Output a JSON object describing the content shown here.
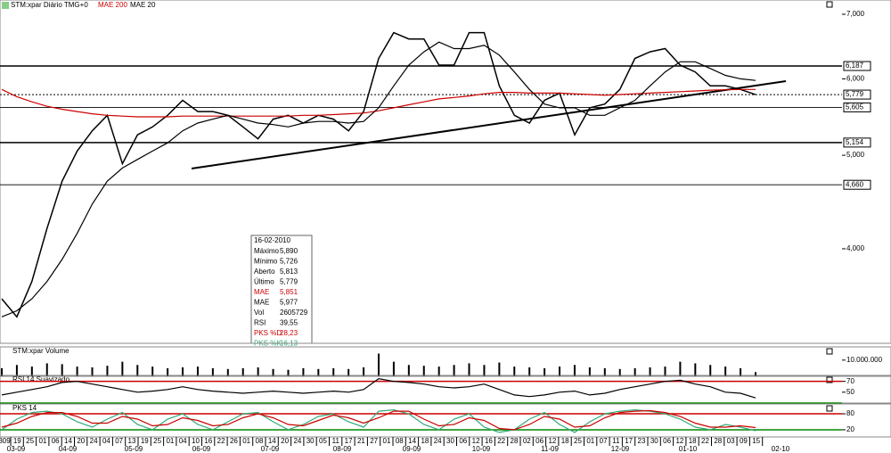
{
  "header": {
    "symbol": "STM:xpar Diário TMG+0",
    "ma1": "MAE 200",
    "ma2": "MAE 20"
  },
  "info_box": {
    "date": "16-02-2010",
    "rows": [
      [
        "Máximo",
        "5,890"
      ],
      [
        "Mínimo",
        "5,726"
      ],
      [
        "Aberto",
        "5,813"
      ],
      [
        "Último",
        "5,779"
      ],
      [
        "MAE",
        "5,851"
      ],
      [
        "MAE",
        "5,977"
      ],
      [
        "Vol",
        "2605729"
      ],
      [
        "RSI",
        "39,55"
      ],
      [
        "PKS %D",
        "28,23"
      ],
      [
        "PKS %K",
        "16,13"
      ]
    ]
  },
  "time_axis": {
    "days": [
      "309",
      "19",
      "25",
      "01",
      "06",
      "14",
      "20",
      "24",
      "04",
      "07",
      "13",
      "19",
      "25",
      "01",
      "04",
      "10",
      "16",
      "22",
      "26",
      "01",
      "08",
      "14",
      "20",
      "24",
      "30",
      "05",
      "11",
      "17",
      "21",
      "27",
      "01",
      "08",
      "14",
      "18",
      "24",
      "30",
      "06",
      "12",
      "16",
      "22",
      "28",
      "02",
      "06",
      "12",
      "18",
      "25",
      "01",
      "07",
      "11",
      "17",
      "23",
      "30",
      "06",
      "12",
      "18",
      "22",
      "28",
      "03",
      "09",
      "15"
    ],
    "months": [
      "03-09",
      "04-09",
      "05-09",
      "06-09",
      "07-09",
      "08-09",
      "09-09",
      "10-09",
      "11-09",
      "12-09",
      "01-10",
      "02-10"
    ]
  },
  "chart_data": [
    {
      "type": "line",
      "log_scale": true,
      "ylim": [
        3192,
        7060
      ],
      "yticks": [
        {
          "value": 7000,
          "label": "7,000"
        },
        {
          "value": 6000,
          "label": "6,000"
        },
        {
          "value": 5000,
          "label": "5,000"
        },
        {
          "value": 4000,
          "label": "4,000"
        }
      ],
      "levels": [
        {
          "value": 6187,
          "label": "6,187"
        },
        {
          "value": 5779,
          "label": "5,779"
        },
        {
          "value": 5605,
          "label": "5,605"
        },
        {
          "value": 5154,
          "label": "5,154"
        },
        {
          "value": 4660,
          "label": "4,660"
        }
      ],
      "series": [
        {
          "name": "STM:xpar",
          "color": "#000000",
          "values": [
            3550,
            3400,
            3700,
            4200,
            4700,
            5050,
            5300,
            5500,
            4900,
            5250,
            5350,
            5500,
            5700,
            5550,
            5550,
            5500,
            5350,
            5200,
            5450,
            5500,
            5400,
            5500,
            5450,
            5300,
            5550,
            6300,
            6700,
            6600,
            6600,
            6200,
            6200,
            6700,
            6700,
            5900,
            5500,
            5400,
            5700,
            5800,
            5250,
            5600,
            5650,
            5850,
            6300,
            6400,
            6450,
            6200,
            6100,
            5900,
            5900,
            5850,
            5779
          ]
        },
        {
          "name": "MAE 200",
          "color": "#cc0000",
          "values": [
            5850,
            5750,
            5680,
            5620,
            5580,
            5550,
            5520,
            5500,
            5490,
            5480,
            5480,
            5480,
            5490,
            5490,
            5490,
            5490,
            5490,
            5490,
            5490,
            5490,
            5500,
            5500,
            5510,
            5520,
            5530,
            5560,
            5600,
            5640,
            5680,
            5720,
            5740,
            5760,
            5790,
            5810,
            5810,
            5800,
            5800,
            5800,
            5790,
            5780,
            5770,
            5780,
            5790,
            5800,
            5810,
            5820,
            5830,
            5840,
            5845,
            5850,
            5851
          ]
        },
        {
          "name": "MAE 20",
          "color": "#000000",
          "values": [
            3400,
            3450,
            3550,
            3700,
            3900,
            4150,
            4450,
            4700,
            4850,
            4950,
            5050,
            5150,
            5300,
            5400,
            5450,
            5500,
            5450,
            5400,
            5380,
            5350,
            5400,
            5420,
            5420,
            5400,
            5420,
            5600,
            5900,
            6200,
            6400,
            6550,
            6450,
            6450,
            6500,
            6350,
            6100,
            5850,
            5650,
            5600,
            5600,
            5500,
            5500,
            5600,
            5700,
            5900,
            6100,
            6250,
            6250,
            6150,
            6050,
            6000,
            5977
          ]
        }
      ]
    },
    {
      "type": "bar",
      "title": "STM:xpar Volume",
      "ylim": [
        0,
        16500000
      ],
      "yticks": [
        {
          "value": 10000000,
          "label": "10.000.000"
        }
      ],
      "series": [
        {
          "name": "Volume",
          "color": "#000000",
          "values": [
            5000000,
            7000000,
            6000000,
            8000000,
            7500000,
            6000000,
            5500000,
            6500000,
            9000000,
            7000000,
            6000000,
            5000000,
            5500000,
            6000000,
            5000000,
            4500000,
            5000000,
            5500000,
            4500000,
            4000000,
            5000000,
            4500000,
            5000000,
            4500000,
            5500000,
            14000000,
            9000000,
            7000000,
            6500000,
            6000000,
            7000000,
            8000000,
            7000000,
            8500000,
            6000000,
            5500000,
            5000000,
            6000000,
            7000000,
            5500000,
            5000000,
            4500000,
            5000000,
            5500000,
            6000000,
            9000000,
            8000000,
            7000000,
            6000000,
            5000000,
            2605729
          ]
        }
      ]
    },
    {
      "type": "line",
      "title": "RSI 14 Suavizado",
      "ylim": [
        30,
        76
      ],
      "yticks": [
        70,
        50
      ],
      "bands": [
        {
          "value": 70,
          "color": "#cc0000"
        },
        {
          "value": 30,
          "color": "#008800"
        }
      ],
      "series": [
        {
          "name": "RSI",
          "color": "#000000",
          "values": [
            45,
            50,
            55,
            60,
            68,
            70,
            65,
            60,
            55,
            50,
            52,
            55,
            60,
            55,
            52,
            50,
            48,
            50,
            52,
            50,
            48,
            50,
            52,
            50,
            55,
            75,
            70,
            68,
            65,
            60,
            58,
            60,
            65,
            55,
            45,
            42,
            45,
            50,
            52,
            45,
            48,
            55,
            60,
            65,
            70,
            72,
            65,
            60,
            50,
            48,
            39.55
          ]
        }
      ]
    },
    {
      "type": "line",
      "title": "PKS 14",
      "ylim": [
        -7,
        107
      ],
      "yticks": [
        80,
        20
      ],
      "bands": [
        {
          "value": 80,
          "color": "#cc0000"
        },
        {
          "value": 20,
          "color": "#008800"
        }
      ],
      "series": [
        {
          "name": "PKS %K",
          "color": "#33aa77",
          "values": [
            20,
            60,
            85,
            90,
            80,
            50,
            30,
            60,
            85,
            40,
            20,
            60,
            80,
            40,
            20,
            50,
            80,
            85,
            50,
            20,
            40,
            70,
            80,
            50,
            30,
            90,
            95,
            80,
            40,
            20,
            60,
            80,
            30,
            10,
            20,
            60,
            85,
            40,
            10,
            50,
            80,
            90,
            95,
            90,
            80,
            60,
            30,
            20,
            40,
            30,
            16.13
          ]
        },
        {
          "name": "PKS %D",
          "color": "#cc0000",
          "values": [
            30,
            45,
            70,
            85,
            85,
            70,
            45,
            45,
            70,
            60,
            35,
            40,
            65,
            55,
            35,
            40,
            65,
            80,
            65,
            40,
            35,
            55,
            75,
            65,
            45,
            65,
            90,
            90,
            60,
            35,
            40,
            65,
            55,
            25,
            20,
            40,
            70,
            60,
            30,
            35,
            65,
            85,
            90,
            92,
            85,
            70,
            45,
            30,
            30,
            35,
            28.23
          ]
        }
      ]
    }
  ]
}
